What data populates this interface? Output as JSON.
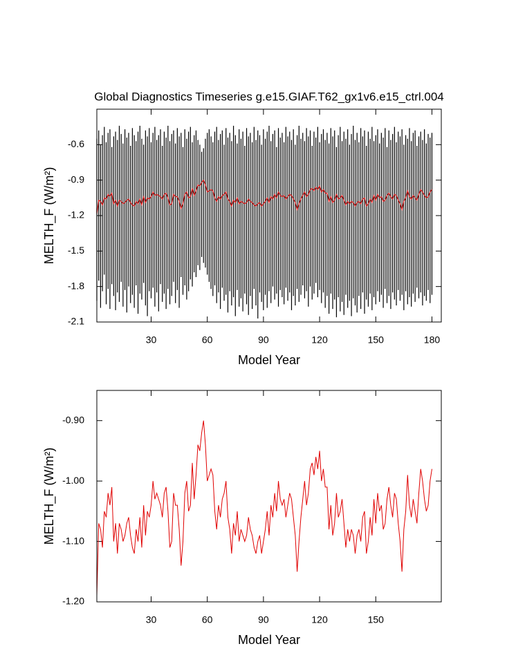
{
  "chart_data": [
    {
      "type": "line",
      "title": "Global Diagnostics Timeseries g.e15.GIAF.T62_gx1v6.e15_ctrl.004",
      "x_label": "Model Year",
      "y_label": "MELTH_F (W/m²)",
      "xlim": [
        1,
        185
      ],
      "ylim": [
        -2.1,
        -0.3
      ],
      "xticks": [
        30,
        60,
        90,
        120,
        150,
        180
      ],
      "yticks": [
        -0.6,
        -0.9,
        -1.2,
        -1.5,
        -1.8,
        -2.1
      ],
      "x": [
        1,
        2,
        3,
        4,
        5,
        6,
        7,
        8,
        9,
        10,
        11,
        12,
        13,
        14,
        15,
        16,
        17,
        18,
        19,
        20,
        21,
        22,
        23,
        24,
        25,
        26,
        27,
        28,
        29,
        30,
        31,
        32,
        33,
        34,
        35,
        36,
        37,
        38,
        39,
        40,
        41,
        42,
        43,
        44,
        45,
        46,
        47,
        48,
        49,
        50,
        51,
        52,
        53,
        54,
        55,
        56,
        57,
        58,
        59,
        60,
        61,
        62,
        63,
        64,
        65,
        66,
        67,
        68,
        69,
        70,
        71,
        72,
        73,
        74,
        75,
        76,
        77,
        78,
        79,
        80,
        81,
        82,
        83,
        84,
        85,
        86,
        87,
        88,
        89,
        90,
        91,
        92,
        93,
        94,
        95,
        96,
        97,
        98,
        99,
        100,
        101,
        102,
        103,
        104,
        105,
        106,
        107,
        108,
        109,
        110,
        111,
        112,
        113,
        114,
        115,
        116,
        117,
        118,
        119,
        120,
        121,
        122,
        123,
        124,
        125,
        126,
        127,
        128,
        129,
        130,
        131,
        132,
        133,
        134,
        135,
        136,
        137,
        138,
        139,
        140,
        141,
        142,
        143,
        144,
        145,
        146,
        147,
        148,
        149,
        150,
        151,
        152,
        153,
        154,
        155,
        156,
        157,
        158,
        159,
        160,
        161,
        162,
        163,
        164,
        165,
        166,
        167,
        168,
        169,
        170,
        171,
        172,
        173,
        174,
        175,
        176,
        177,
        178,
        179,
        180
      ],
      "series": [
        {
          "color": "#000000",
          "high": [
            -0.55,
            -0.48,
            -0.6,
            -0.52,
            -0.45,
            -0.58,
            -0.5,
            -0.47,
            -0.62,
            -0.53,
            -0.49,
            -0.56,
            -0.44,
            -0.51,
            -0.59,
            -0.47,
            -0.54,
            -0.5,
            -0.61,
            -0.46,
            -0.52,
            -0.57,
            -0.49,
            -0.44,
            -0.55,
            -0.6,
            -0.48,
            -0.53,
            -0.46,
            -0.58,
            -0.5,
            -0.45,
            -0.56,
            -0.52,
            -0.47,
            -0.61,
            -0.49,
            -0.54,
            -0.44,
            -0.57,
            -0.51,
            -0.48,
            -0.59,
            -0.46,
            -0.53,
            -0.5,
            -0.62,
            -0.47,
            -0.55,
            -0.49,
            -0.45,
            -0.58,
            -0.52,
            -0.48,
            -0.56,
            -0.6,
            -0.66,
            -0.63,
            -0.55,
            -0.5,
            -0.47,
            -0.53,
            -0.58,
            -0.49,
            -0.45,
            -0.56,
            -0.51,
            -0.48,
            -0.6,
            -0.46,
            -0.54,
            -0.5,
            -0.57,
            -0.44,
            -0.52,
            -0.59,
            -0.47,
            -0.55,
            -0.49,
            -0.61,
            -0.46,
            -0.53,
            -0.5,
            -0.58,
            -0.45,
            -0.56,
            -0.48,
            -0.52,
            -0.6,
            -0.47,
            -0.55,
            -0.49,
            -0.44,
            -0.57,
            -0.51,
            -0.48,
            -0.62,
            -0.46,
            -0.54,
            -0.5,
            -0.58,
            -0.45,
            -0.53,
            -0.49,
            -0.56,
            -0.47,
            -0.6,
            -0.52,
            -0.44,
            -0.55,
            -0.5,
            -0.57,
            -0.46,
            -0.53,
            -0.48,
            -0.61,
            -0.49,
            -0.54,
            -0.45,
            -0.58,
            -0.51,
            -0.47,
            -0.56,
            -0.5,
            -0.59,
            -0.46,
            -0.53,
            -0.48,
            -0.62,
            -0.52,
            -0.45,
            -0.57,
            -0.49,
            -0.55,
            -0.47,
            -0.6,
            -0.51,
            -0.44,
            -0.56,
            -0.5,
            -0.58,
            -0.46,
            -0.53,
            -0.48,
            -0.61,
            -0.49,
            -0.55,
            -0.45,
            -0.57,
            -0.52,
            -0.47,
            -0.59,
            -0.5,
            -0.54,
            -0.46,
            -0.62,
            -0.48,
            -0.56,
            -0.51,
            -0.45,
            -0.58,
            -0.49,
            -0.53,
            -0.47,
            -0.6,
            -0.52,
            -0.55,
            -0.46,
            -0.57,
            -0.5,
            -0.48,
            -0.61,
            -0.53,
            -0.49,
            -0.56,
            -0.47,
            -0.59,
            -0.51,
            -0.54,
            -0.5
          ],
          "low": [
            -1.92,
            -1.75,
            -1.98,
            -1.84,
            -1.7,
            -1.95,
            -1.82,
            -1.99,
            -1.78,
            -1.88,
            -2.0,
            -1.85,
            -1.93,
            -1.76,
            -1.97,
            -1.83,
            -2.02,
            -1.8,
            -1.94,
            -1.87,
            -1.98,
            -1.79,
            -2.03,
            -1.86,
            -1.91,
            -1.77,
            -1.96,
            -2.05,
            -1.84,
            -1.9,
            -1.81,
            -1.97,
            -1.85,
            -2.01,
            -1.78,
            -1.93,
            -1.86,
            -1.99,
            -1.82,
            -1.95,
            -1.88,
            -1.76,
            -1.94,
            -1.83,
            -1.98,
            -1.72,
            -1.87,
            -1.79,
            -1.91,
            -1.84,
            -1.74,
            -1.8,
            -1.68,
            -1.72,
            -1.62,
            -1.66,
            -1.55,
            -1.6,
            -1.64,
            -1.7,
            -1.76,
            -1.82,
            -1.88,
            -1.79,
            -1.94,
            -1.85,
            -1.99,
            -1.81,
            -1.92,
            -1.87,
            -2.02,
            -1.84,
            -1.96,
            -1.89,
            -2.05,
            -1.83,
            -1.97,
            -1.9,
            -2.01,
            -1.86,
            -1.95,
            -2.04,
            -1.88,
            -1.99,
            -1.82,
            -1.96,
            -2.07,
            -1.85,
            -1.93,
            -2.0,
            -1.87,
            -1.98,
            -1.84,
            -1.94,
            -1.8,
            -1.91,
            -1.86,
            -1.97,
            -1.83,
            -1.89,
            -1.95,
            -1.81,
            -1.92,
            -1.85,
            -2.0,
            -1.88,
            -1.96,
            -1.82,
            -1.93,
            -1.87,
            -1.79,
            -1.9,
            -1.84,
            -1.97,
            -1.8,
            -1.91,
            -1.86,
            -1.77,
            -1.89,
            -1.83,
            -1.94,
            -1.85,
            -1.98,
            -1.88,
            -2.03,
            -1.86,
            -1.99,
            -1.91,
            -2.06,
            -1.89,
            -2.01,
            -1.93,
            -2.04,
            -1.87,
            -1.98,
            -1.92,
            -2.05,
            -1.9,
            -1.96,
            -2.02,
            -1.88,
            -1.99,
            -1.85,
            -2.03,
            -1.91,
            -1.97,
            -1.86,
            -2.0,
            -1.89,
            -1.95,
            -1.84,
            -1.93,
            -1.87,
            -1.98,
            -1.82,
            -1.94,
            -1.88,
            -1.99,
            -1.85,
            -1.91,
            -1.96,
            -1.83,
            -1.92,
            -1.87,
            -2.0,
            -1.84,
            -1.95,
            -1.89,
            -1.97,
            -1.86,
            -1.93,
            -1.81,
            -1.9,
            -1.85,
            -1.96,
            -1.88,
            -1.92,
            -1.83,
            -1.94,
            -1.87
          ]
        },
        {
          "color": "#e00000",
          "values": [
            -1.19,
            -1.07,
            -1.08,
            -1.11,
            -1.05,
            -1.06,
            -1.02,
            -1.04,
            -1.01,
            -1.1,
            -1.07,
            -1.12,
            -1.07,
            -1.08,
            -1.1,
            -1.09,
            -1.07,
            -1.06,
            -1.09,
            -1.11,
            -1.12,
            -1.08,
            -1.1,
            -1.06,
            -1.11,
            -1.04,
            -1.09,
            -1.05,
            -1.06,
            -1.04,
            -1.0,
            -1.03,
            -1.02,
            -1.03,
            -1.04,
            -1.06,
            -1.02,
            -1.01,
            -1.05,
            -1.11,
            -1.1,
            -1.02,
            -1.04,
            -1.04,
            -1.08,
            -1.14,
            -1.1,
            -1.02,
            -1.0,
            -1.05,
            -1.04,
            -0.97,
            -1.03,
            -0.99,
            -0.94,
            -0.95,
            -0.92,
            -0.9,
            -0.94,
            -1.0,
            -0.99,
            -0.98,
            -0.99,
            -1.05,
            -1.08,
            -1.04,
            -1.06,
            -1.03,
            -1.02,
            -1.0,
            -1.06,
            -1.08,
            -1.12,
            -1.07,
            -1.09,
            -1.05,
            -1.1,
            -1.08,
            -1.09,
            -1.1,
            -1.09,
            -1.06,
            -1.08,
            -1.09,
            -1.11,
            -1.12,
            -1.1,
            -1.09,
            -1.12,
            -1.1,
            -1.08,
            -1.05,
            -1.09,
            -1.04,
            -1.06,
            -1.02,
            -1.05,
            -1.0,
            -1.03,
            -1.04,
            -1.03,
            -1.06,
            -1.04,
            -1.02,
            -1.03,
            -1.06,
            -1.09,
            -1.15,
            -1.1,
            -1.06,
            -1.03,
            -1.0,
            -1.04,
            -1.02,
            -0.98,
            -0.97,
            -0.99,
            -0.96,
            -0.98,
            -0.95,
            -1.0,
            -0.98,
            -1.01,
            -1.01,
            -1.08,
            -1.04,
            -1.09,
            -1.07,
            -1.02,
            -1.06,
            -1.05,
            -1.03,
            -1.07,
            -1.11,
            -1.08,
            -1.1,
            -1.08,
            -1.09,
            -1.12,
            -1.09,
            -1.08,
            -1.1,
            -1.06,
            -1.05,
            -1.12,
            -1.1,
            -1.06,
            -1.09,
            -1.03,
            -1.07,
            -1.02,
            -1.05,
            -1.04,
            -1.08,
            -1.07,
            -1.03,
            -1.01,
            -1.04,
            -1.06,
            -1.02,
            -1.03,
            -1.07,
            -1.1,
            -1.15,
            -1.08,
            -1.05,
            -0.99,
            -1.04,
            -1.06,
            -1.03,
            -1.05,
            -1.07,
            -1.02,
            -0.98,
            -1.0,
            -1.03,
            -1.05,
            -1.04,
            -1.0,
            -0.98
          ]
        }
      ]
    },
    {
      "type": "line",
      "x_label": "Model Year",
      "y_label": "MELTH_F (W/m²)",
      "xlim": [
        1,
        185
      ],
      "ylim": [
        -1.2,
        -0.85
      ],
      "xticks": [
        30,
        60,
        90,
        120,
        150
      ],
      "yticks": [
        {
          "value": -0.9,
          "label": "-0.90"
        },
        {
          "value": -1.0,
          "label": "-1.00"
        },
        {
          "value": -1.1,
          "label": "-1.10"
        },
        {
          "value": -1.2,
          "label": "-1.20"
        }
      ],
      "x": [
        1,
        2,
        3,
        4,
        5,
        6,
        7,
        8,
        9,
        10,
        11,
        12,
        13,
        14,
        15,
        16,
        17,
        18,
        19,
        20,
        21,
        22,
        23,
        24,
        25,
        26,
        27,
        28,
        29,
        30,
        31,
        32,
        33,
        34,
        35,
        36,
        37,
        38,
        39,
        40,
        41,
        42,
        43,
        44,
        45,
        46,
        47,
        48,
        49,
        50,
        51,
        52,
        53,
        54,
        55,
        56,
        57,
        58,
        59,
        60,
        61,
        62,
        63,
        64,
        65,
        66,
        67,
        68,
        69,
        70,
        71,
        72,
        73,
        74,
        75,
        76,
        77,
        78,
        79,
        80,
        81,
        82,
        83,
        84,
        85,
        86,
        87,
        88,
        89,
        90,
        91,
        92,
        93,
        94,
        95,
        96,
        97,
        98,
        99,
        100,
        101,
        102,
        103,
        104,
        105,
        106,
        107,
        108,
        109,
        110,
        111,
        112,
        113,
        114,
        115,
        116,
        117,
        118,
        119,
        120,
        121,
        122,
        123,
        124,
        125,
        126,
        127,
        128,
        129,
        130,
        131,
        132,
        133,
        134,
        135,
        136,
        137,
        138,
        139,
        140,
        141,
        142,
        143,
        144,
        145,
        146,
        147,
        148,
        149,
        150,
        151,
        152,
        153,
        154,
        155,
        156,
        157,
        158,
        159,
        160,
        161,
        162,
        163,
        164,
        165,
        166,
        167,
        168,
        169,
        170,
        171,
        172,
        173,
        174,
        175,
        176,
        177,
        178,
        179,
        180
      ],
      "series": [
        {
          "color": "#e00000",
          "values": [
            -1.19,
            -1.07,
            -1.08,
            -1.11,
            -1.05,
            -1.06,
            -1.02,
            -1.04,
            -1.01,
            -1.1,
            -1.07,
            -1.12,
            -1.07,
            -1.08,
            -1.1,
            -1.09,
            -1.07,
            -1.06,
            -1.09,
            -1.11,
            -1.12,
            -1.08,
            -1.1,
            -1.06,
            -1.11,
            -1.04,
            -1.09,
            -1.05,
            -1.06,
            -1.04,
            -1.0,
            -1.03,
            -1.02,
            -1.03,
            -1.04,
            -1.06,
            -1.02,
            -1.01,
            -1.05,
            -1.11,
            -1.1,
            -1.02,
            -1.04,
            -1.04,
            -1.08,
            -1.14,
            -1.1,
            -1.02,
            -1.0,
            -1.05,
            -1.04,
            -0.97,
            -1.03,
            -0.99,
            -0.94,
            -0.95,
            -0.92,
            -0.9,
            -0.94,
            -1.0,
            -0.99,
            -0.98,
            -0.99,
            -1.05,
            -1.08,
            -1.04,
            -1.06,
            -1.03,
            -1.02,
            -1.0,
            -1.06,
            -1.08,
            -1.12,
            -1.07,
            -1.09,
            -1.05,
            -1.1,
            -1.08,
            -1.09,
            -1.1,
            -1.09,
            -1.06,
            -1.08,
            -1.09,
            -1.11,
            -1.12,
            -1.1,
            -1.09,
            -1.12,
            -1.1,
            -1.08,
            -1.05,
            -1.09,
            -1.04,
            -1.06,
            -1.02,
            -1.05,
            -1.0,
            -1.03,
            -1.04,
            -1.03,
            -1.06,
            -1.04,
            -1.02,
            -1.03,
            -1.06,
            -1.09,
            -1.15,
            -1.1,
            -1.06,
            -1.03,
            -1.0,
            -1.04,
            -1.02,
            -0.98,
            -0.97,
            -0.99,
            -0.96,
            -0.98,
            -0.95,
            -1.0,
            -0.98,
            -1.01,
            -1.01,
            -1.08,
            -1.04,
            -1.09,
            -1.07,
            -1.02,
            -1.06,
            -1.05,
            -1.03,
            -1.07,
            -1.11,
            -1.08,
            -1.1,
            -1.08,
            -1.09,
            -1.12,
            -1.09,
            -1.08,
            -1.1,
            -1.06,
            -1.05,
            -1.12,
            -1.1,
            -1.06,
            -1.09,
            -1.03,
            -1.07,
            -1.02,
            -1.05,
            -1.04,
            -1.08,
            -1.07,
            -1.03,
            -1.01,
            -1.04,
            -1.06,
            -1.02,
            -1.03,
            -1.07,
            -1.1,
            -1.15,
            -1.08,
            -1.05,
            -0.99,
            -1.04,
            -1.06,
            -1.03,
            -1.05,
            -1.07,
            -1.02,
            -0.98,
            -1.0,
            -1.03,
            -1.05,
            -1.04,
            -1.0,
            -0.98
          ]
        }
      ]
    }
  ]
}
